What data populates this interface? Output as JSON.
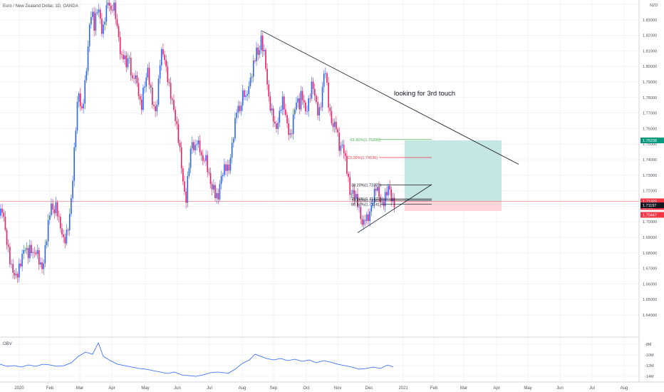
{
  "header": {
    "symbol_text": "Euro / New Zealand Dollar, 1D, OANDA",
    "currency": "NZD"
  },
  "annotation": "looking for 3rd touch",
  "chart_data": {
    "type": "candlestick",
    "title": "Euro / New Zealand Dollar, 1D, OANDA",
    "y_axis": {
      "ticks": [
        "1.84000",
        "1.83000",
        "1.82000",
        "1.81000",
        "1.80000",
        "1.79000",
        "1.78000",
        "1.77000",
        "1.76000",
        "1.75000",
        "1.74000",
        "1.73000",
        "1.72000",
        "1.71000",
        "1.70000",
        "1.69000",
        "1.68000",
        "1.67000",
        "1.66000",
        "1.65000",
        "1.64000"
      ],
      "ylim": [
        1.636,
        1.843
      ]
    },
    "x_axis": {
      "ticks": [
        "2020",
        "Feb",
        "Mar",
        "Apr",
        "May",
        "Jun",
        "Jul",
        "Aug",
        "Sep",
        "Oct",
        "Nov",
        "Dec",
        "2021",
        "Feb",
        "Mar",
        "Apr",
        "May",
        "Jun",
        "Jul",
        "Aug"
      ]
    },
    "price_path": [
      [
        0,
        1.704
      ],
      [
        3,
        1.707
      ],
      [
        6,
        1.699
      ],
      [
        10,
        1.687
      ],
      [
        13,
        1.68
      ],
      [
        15,
        1.671
      ],
      [
        18,
        1.667
      ],
      [
        21,
        1.664
      ],
      [
        24,
        1.667
      ],
      [
        27,
        1.672
      ],
      [
        30,
        1.675
      ],
      [
        33,
        1.68
      ],
      [
        36,
        1.683
      ],
      [
        39,
        1.68
      ],
      [
        42,
        1.684
      ],
      [
        45,
        1.68
      ],
      [
        48,
        1.677
      ],
      [
        51,
        1.682
      ],
      [
        54,
        1.678
      ],
      [
        57,
        1.673
      ],
      [
        60,
        1.668
      ],
      [
        63,
        1.68
      ],
      [
        66,
        1.692
      ],
      [
        69,
        1.706
      ],
      [
        72,
        1.712
      ],
      [
        75,
        1.704
      ],
      [
        78,
        1.709
      ],
      [
        81,
        1.706
      ],
      [
        84,
        1.7
      ],
      [
        87,
        1.693
      ],
      [
        90,
        1.685
      ],
      [
        93,
        1.69
      ],
      [
        96,
        1.698
      ],
      [
        99,
        1.711
      ],
      [
        102,
        1.728
      ],
      [
        105,
        1.75
      ],
      [
        108,
        1.772
      ],
      [
        111,
        1.786
      ],
      [
        114,
        1.77
      ],
      [
        117,
        1.778
      ],
      [
        120,
        1.79
      ],
      [
        123,
        1.807
      ],
      [
        126,
        1.83
      ],
      [
        129,
        1.838
      ],
      [
        132,
        1.825
      ],
      [
        135,
        1.832
      ],
      [
        138,
        1.838
      ],
      [
        141,
        1.83
      ],
      [
        144,
        1.822
      ],
      [
        147,
        1.83
      ],
      [
        150,
        1.838
      ],
      [
        153,
        1.842
      ],
      [
        156,
        1.835
      ],
      [
        159,
        1.843
      ],
      [
        162,
        1.832
      ],
      [
        165,
        1.822
      ],
      [
        168,
        1.812
      ],
      [
        171,
        1.806
      ],
      [
        174,
        1.81
      ],
      [
        177,
        1.798
      ],
      [
        180,
        1.806
      ],
      [
        183,
        1.8
      ],
      [
        186,
        1.791
      ],
      [
        189,
        1.797
      ],
      [
        192,
        1.788
      ],
      [
        195,
        1.78
      ],
      [
        198,
        1.772
      ],
      [
        201,
        1.786
      ],
      [
        204,
        1.79
      ],
      [
        207,
        1.797
      ],
      [
        210,
        1.788
      ],
      [
        213,
        1.78
      ],
      [
        216,
        1.775
      ],
      [
        219,
        1.77
      ],
      [
        222,
        1.785
      ],
      [
        225,
        1.805
      ],
      [
        228,
        1.812
      ],
      [
        231,
        1.806
      ],
      [
        234,
        1.796
      ],
      [
        237,
        1.786
      ],
      [
        240,
        1.78
      ],
      [
        243,
        1.776
      ],
      [
        246,
        1.768
      ],
      [
        249,
        1.758
      ],
      [
        252,
        1.746
      ],
      [
        255,
        1.734
      ],
      [
        258,
        1.722
      ],
      [
        261,
        1.715
      ],
      [
        264,
        1.73
      ],
      [
        267,
        1.742
      ],
      [
        270,
        1.752
      ],
      [
        273,
        1.746
      ],
      [
        276,
        1.754
      ],
      [
        279,
        1.748
      ],
      [
        282,
        1.742
      ],
      [
        285,
        1.738
      ],
      [
        288,
        1.745
      ],
      [
        291,
        1.736
      ],
      [
        294,
        1.727
      ],
      [
        297,
        1.72
      ],
      [
        300,
        1.722
      ],
      [
        303,
        1.718
      ],
      [
        306,
        1.716
      ],
      [
        309,
        1.724
      ],
      [
        312,
        1.73
      ],
      [
        315,
        1.735
      ],
      [
        318,
        1.738
      ],
      [
        321,
        1.733
      ],
      [
        324,
        1.742
      ],
      [
        327,
        1.752
      ],
      [
        330,
        1.765
      ],
      [
        333,
        1.778
      ],
      [
        336,
        1.77
      ],
      [
        339,
        1.776
      ],
      [
        342,
        1.784
      ],
      [
        345,
        1.78
      ],
      [
        348,
        1.787
      ],
      [
        351,
        1.79
      ],
      [
        354,
        1.795
      ],
      [
        357,
        1.803
      ],
      [
        360,
        1.812
      ],
      [
        363,
        1.808
      ],
      [
        366,
        1.818
      ],
      [
        369,
        1.81
      ],
      [
        372,
        1.805
      ],
      [
        375,
        1.79
      ],
      [
        378,
        1.778
      ],
      [
        381,
        1.77
      ],
      [
        384,
        1.765
      ],
      [
        387,
        1.758
      ],
      [
        390,
        1.766
      ],
      [
        393,
        1.772
      ],
      [
        396,
        1.778
      ],
      [
        399,
        1.772
      ],
      [
        402,
        1.765
      ],
      [
        405,
        1.76
      ],
      [
        408,
        1.754
      ],
      [
        411,
        1.764
      ],
      [
        414,
        1.772
      ],
      [
        417,
        1.78
      ],
      [
        420,
        1.776
      ],
      [
        423,
        1.784
      ],
      [
        426,
        1.776
      ],
      [
        429,
        1.769
      ],
      [
        432,
        1.775
      ],
      [
        435,
        1.783
      ],
      [
        438,
        1.79
      ],
      [
        441,
        1.782
      ],
      [
        444,
        1.774
      ],
      [
        447,
        1.77
      ],
      [
        450,
        1.776
      ],
      [
        453,
        1.788
      ],
      [
        456,
        1.799
      ],
      [
        459,
        1.786
      ],
      [
        462,
        1.773
      ],
      [
        465,
        1.767
      ],
      [
        468,
        1.76
      ],
      [
        471,
        1.763
      ],
      [
        474,
        1.754
      ],
      [
        477,
        1.747
      ],
      [
        480,
        1.752
      ],
      [
        483,
        1.744
      ],
      [
        486,
        1.735
      ],
      [
        489,
        1.726
      ],
      [
        492,
        1.718
      ],
      [
        495,
        1.721
      ],
      [
        498,
        1.716
      ],
      [
        501,
        1.712
      ],
      [
        504,
        1.708
      ],
      [
        507,
        1.702
      ],
      [
        510,
        1.699
      ],
      [
        513,
        1.703
      ],
      [
        516,
        1.699
      ],
      [
        519,
        1.706
      ],
      [
        522,
        1.713
      ],
      [
        525,
        1.718
      ],
      [
        528,
        1.722
      ],
      [
        531,
        1.717
      ],
      [
        534,
        1.714
      ],
      [
        537,
        1.712
      ],
      [
        540,
        1.716
      ],
      [
        543,
        1.718
      ],
      [
        546,
        1.722
      ],
      [
        549,
        1.716
      ],
      [
        552,
        1.714
      ],
      [
        555,
        1.712
      ]
    ],
    "ohlc_summary": {
      "last": "1.71320",
      "ask": "1.71197",
      "swing_low": "1.70447",
      "target": "1.75238",
      "countdown": "32:22"
    },
    "fibonacci": [
      {
        "label": "-61.80%(1.75295)",
        "value": 1.75295,
        "color": "#4caf50"
      },
      {
        "label": "-23.00%(1.74136)",
        "value": 1.74136,
        "color": "#f23645"
      },
      {
        "label": "38.20%(1.72371)",
        "value": 1.72371,
        "color": "#131722"
      },
      {
        "label": "75.00%(1.71473)",
        "value": 1.71473,
        "color": "#131722"
      },
      {
        "label": "78.60%(1.71385)",
        "value": 1.71385,
        "color": "#131722"
      },
      {
        "label": "88.60%(1.71141)",
        "value": 1.71141,
        "color": "#131722"
      }
    ],
    "trendlines": [
      {
        "name": "descending-resistance",
        "from": [
          367,
          1.823
        ],
        "to": [
          728,
          1.737
        ]
      },
      {
        "name": "rising-support",
        "from": [
          502,
          1.693
        ],
        "to": [
          606,
          1.724
        ]
      }
    ],
    "long_position": {
      "entry": 1.7132,
      "target": 1.7524,
      "stop": 1.707,
      "x_start": 568,
      "x_end": 704,
      "profit_color": "#b2dfdb",
      "loss_color": "#ffcdd2"
    },
    "horizontal_line": {
      "value": 1.7132,
      "color": "#f23645"
    },
    "obv": {
      "label": "OBV",
      "ticks": [
        "-8M",
        "-10M",
        "-12M",
        "-14M"
      ],
      "path": [
        [
          0,
          511
        ],
        [
          10,
          514
        ],
        [
          20,
          513
        ],
        [
          30,
          515
        ],
        [
          40,
          512
        ],
        [
          50,
          514
        ],
        [
          60,
          511
        ],
        [
          70,
          512
        ],
        [
          80,
          514
        ],
        [
          90,
          513
        ],
        [
          100,
          509
        ],
        [
          110,
          500
        ],
        [
          120,
          494
        ],
        [
          130,
          497
        ],
        [
          138,
          481
        ],
        [
          145,
          500
        ],
        [
          155,
          506
        ],
        [
          165,
          511
        ],
        [
          175,
          513
        ],
        [
          185,
          515
        ],
        [
          195,
          517
        ],
        [
          205,
          518
        ],
        [
          215,
          520
        ],
        [
          225,
          522
        ],
        [
          235,
          524
        ],
        [
          245,
          522
        ],
        [
          255,
          526
        ],
        [
          265,
          527
        ],
        [
          275,
          528
        ],
        [
          285,
          526
        ],
        [
          295,
          523
        ],
        [
          305,
          522
        ],
        [
          315,
          523
        ],
        [
          320,
          524
        ],
        [
          330,
          518
        ],
        [
          340,
          510
        ],
        [
          350,
          505
        ],
        [
          358,
          497
        ],
        [
          366,
          500
        ],
        [
          374,
          503
        ],
        [
          384,
          505
        ],
        [
          394,
          503
        ],
        [
          404,
          506
        ],
        [
          414,
          504
        ],
        [
          424,
          507
        ],
        [
          434,
          505
        ],
        [
          444,
          509
        ],
        [
          454,
          506
        ],
        [
          464,
          508
        ],
        [
          474,
          511
        ],
        [
          484,
          513
        ],
        [
          494,
          515
        ],
        [
          504,
          518
        ],
        [
          514,
          517
        ],
        [
          524,
          515
        ],
        [
          534,
          517
        ],
        [
          544,
          512
        ],
        [
          552,
          515
        ]
      ]
    },
    "colors": {
      "up": "#2962ff",
      "down": "#e91e63",
      "grid": "#f0f3fa",
      "axis_text": "#50535e",
      "target_badge": "#089981",
      "last_badge": "#f23645",
      "ask_badge": "#131722"
    }
  }
}
